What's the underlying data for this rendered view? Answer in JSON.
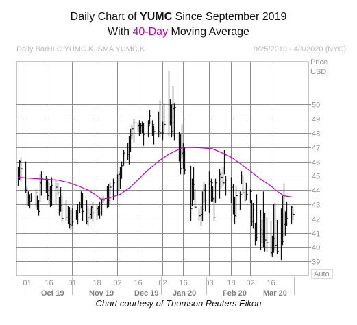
{
  "header": {
    "line1_prefix": "Daily Chart of ",
    "line1_ticker": "YUMC",
    "line1_suffix": " Since September 2019",
    "line2_prefix": "With ",
    "line2_accent": "40-Day",
    "line2_suffix": " Moving Average",
    "series_label": "Daily BarHLC YUMC.K, SMA YUMC.K",
    "date_range": "9/25/2019 - 4/1/2020 (NYC)"
  },
  "footer": "Chart courtesy of Thomson Reuters Eikon",
  "colors": {
    "bars": "#111111",
    "sma": "#c000c0",
    "grid": "#8c8c8c",
    "accent": "#c000c0"
  },
  "chart_data": {
    "type": "bar",
    "subtype": "ohlc-hlc",
    "title": "Daily Chart of YUMC Since September 2019 With 40-Day Moving Average",
    "ylabel": "Price USD",
    "ylim": [
      38,
      53
    ],
    "yticks": [
      39,
      40,
      41,
      42,
      43,
      44,
      45,
      46,
      47,
      48,
      49,
      50
    ],
    "auto_label": "Auto",
    "xticks": [
      "01",
      "16",
      "01",
      "18",
      "02",
      "16",
      "02",
      "16",
      "03",
      "18",
      "02",
      "16"
    ],
    "months": [
      "Oct 19",
      "Nov 19",
      "Dec 19",
      "Jan 20",
      "Feb 20",
      "Mar 20"
    ],
    "grid": true,
    "series": [
      {
        "name": "YUMC.K",
        "kind": "hlc",
        "x": [
          "2019-09-25",
          "2019-09-26",
          "2019-09-27",
          "2019-09-30",
          "2019-10-01",
          "2019-10-02",
          "2019-10-03",
          "2019-10-04",
          "2019-10-07",
          "2019-10-08",
          "2019-10-09",
          "2019-10-10",
          "2019-10-11",
          "2019-10-14",
          "2019-10-15",
          "2019-10-16",
          "2019-10-17",
          "2019-10-18",
          "2019-10-21",
          "2019-10-22",
          "2019-10-23",
          "2019-10-24",
          "2019-10-25",
          "2019-10-28",
          "2019-10-29",
          "2019-10-30",
          "2019-10-31",
          "2019-11-01",
          "2019-11-04",
          "2019-11-05",
          "2019-11-06",
          "2019-11-07",
          "2019-11-08",
          "2019-11-11",
          "2019-11-12",
          "2019-11-13",
          "2019-11-14",
          "2019-11-15",
          "2019-11-18",
          "2019-11-19",
          "2019-11-20",
          "2019-11-21",
          "2019-11-22",
          "2019-11-25",
          "2019-11-26",
          "2019-11-27",
          "2019-11-29",
          "2019-12-02",
          "2019-12-03",
          "2019-12-04",
          "2019-12-05",
          "2019-12-06",
          "2019-12-09",
          "2019-12-10",
          "2019-12-11",
          "2019-12-12",
          "2019-12-13",
          "2019-12-16",
          "2019-12-17",
          "2019-12-18",
          "2019-12-19",
          "2019-12-20",
          "2019-12-23",
          "2019-12-24",
          "2019-12-26",
          "2019-12-27",
          "2019-12-30",
          "2019-12-31",
          "2020-01-02",
          "2020-01-03",
          "2020-01-06",
          "2020-01-07",
          "2020-01-08",
          "2020-01-09",
          "2020-01-10",
          "2020-01-13",
          "2020-01-14",
          "2020-01-15",
          "2020-01-16",
          "2020-01-17",
          "2020-01-21",
          "2020-01-22",
          "2020-01-23",
          "2020-01-24",
          "2020-01-27",
          "2020-01-28",
          "2020-01-29",
          "2020-01-30",
          "2020-01-31",
          "2020-02-03",
          "2020-02-04",
          "2020-02-05",
          "2020-02-06",
          "2020-02-07",
          "2020-02-10",
          "2020-02-11",
          "2020-02-12",
          "2020-02-13",
          "2020-02-14",
          "2020-02-18",
          "2020-02-19",
          "2020-02-20",
          "2020-02-21",
          "2020-02-24",
          "2020-02-25",
          "2020-02-26",
          "2020-02-27",
          "2020-02-28",
          "2020-03-02",
          "2020-03-03",
          "2020-03-04",
          "2020-03-05",
          "2020-03-06",
          "2020-03-09",
          "2020-03-10",
          "2020-03-11",
          "2020-03-12",
          "2020-03-13",
          "2020-03-16",
          "2020-03-17",
          "2020-03-18",
          "2020-03-19",
          "2020-03-20",
          "2020-03-23",
          "2020-03-24",
          "2020-03-25",
          "2020-03-26",
          "2020-03-27",
          "2020-03-30",
          "2020-03-31"
        ],
        "high": [
          45.6,
          46.1,
          46.3,
          46.0,
          44.3,
          43.9,
          43.7,
          43.8,
          44.1,
          43.6,
          43.3,
          45.1,
          45.3,
          45.0,
          44.8,
          44.6,
          44.3,
          44.9,
          44.7,
          44.5,
          43.5,
          44.2,
          43.6,
          43.3,
          42.9,
          42.8,
          42.6,
          42.7,
          42.6,
          43.0,
          43.2,
          43.9,
          43.8,
          43.3,
          42.9,
          42.7,
          42.9,
          43.2,
          43.0,
          42.9,
          43.2,
          43.4,
          43.6,
          44.3,
          44.4,
          44.6,
          44.8,
          45.1,
          45.3,
          45.6,
          46.0,
          46.8,
          47.3,
          47.8,
          48.3,
          48.6,
          49.0,
          48.7,
          48.9,
          48.7,
          48.8,
          48.7,
          48.9,
          49.6,
          48.9,
          48.5,
          49.5,
          50.2,
          48.8,
          50.1,
          52.4,
          50.4,
          50.0,
          51.3,
          50.1,
          48.1,
          47.9,
          48.6,
          47.3,
          47.0,
          45.7,
          44.8,
          45.6,
          44.1,
          42.7,
          42.9,
          43.9,
          44.6,
          44.4,
          45.3,
          44.8,
          44.3,
          43.5,
          44.8,
          45.5,
          45.3,
          45.6,
          46.8,
          45.0,
          44.9,
          44.4,
          43.5,
          44.3,
          43.9,
          45.3,
          45.0,
          43.9,
          44.5,
          44.1,
          43.3,
          43.1,
          41.7,
          43.7,
          42.6,
          41.9,
          43.9,
          42.4,
          42.1,
          41.8,
          40.8,
          43.0,
          43.1,
          41.9,
          42.7,
          43.6,
          44.4,
          42.5,
          43.2,
          42.9,
          42.7
        ],
        "low": [
          44.3,
          44.7,
          44.6,
          43.8,
          42.9,
          42.9,
          42.7,
          43.2,
          42.8,
          42.6,
          42.2,
          43.2,
          43.6,
          43.8,
          43.3,
          43.0,
          42.8,
          42.9,
          43.0,
          43.6,
          42.2,
          42.5,
          41.8,
          41.8,
          41.6,
          41.3,
          41.2,
          41.5,
          41.9,
          41.6,
          42.4,
          42.7,
          41.8,
          41.6,
          41.5,
          41.9,
          42.0,
          41.8,
          41.9,
          42.2,
          42.0,
          42.2,
          43.1,
          42.7,
          42.8,
          43.0,
          43.3,
          43.6,
          43.9,
          44.1,
          44.8,
          45.7,
          46.1,
          45.8,
          46.7,
          47.6,
          47.3,
          48.1,
          47.8,
          47.9,
          48.0,
          47.1,
          47.7,
          48.6,
          47.8,
          47.2,
          47.7,
          47.7,
          47.5,
          48.1,
          47.8,
          48.5,
          47.7,
          47.8,
          47.5,
          46.0,
          45.1,
          46.2,
          45.5,
          45.1,
          41.8,
          42.9,
          43.3,
          42.7,
          41.8,
          41.5,
          41.8,
          43.1,
          42.5,
          42.4,
          43.2,
          43.2,
          41.8,
          43.1,
          43.4,
          44.1,
          44.3,
          45.1,
          43.6,
          43.1,
          42.3,
          41.6,
          42.1,
          42.6,
          44.4,
          43.6,
          43.2,
          43.3,
          43.1,
          41.5,
          41.3,
          40.1,
          40.4,
          39.8,
          40.3,
          40.0,
          39.7,
          39.7,
          39.4,
          39.3,
          39.6,
          39.8,
          39.5,
          39.1,
          40.1,
          40.7,
          40.8,
          41.5,
          41.6,
          41.9
        ],
        "close": [
          45.0,
          46.0,
          45.5,
          44.0,
          43.5,
          43.3,
          43.2,
          43.5,
          43.8,
          42.8,
          42.5,
          44.5,
          44.8,
          44.2,
          43.6,
          43.3,
          43.4,
          44.3,
          44.2,
          43.8,
          42.5,
          42.9,
          42.0,
          42.1,
          42.2,
          41.6,
          41.5,
          41.8,
          42.3,
          42.4,
          43.0,
          43.1,
          42.5,
          41.8,
          42.1,
          42.3,
          42.8,
          42.4,
          42.7,
          42.5,
          42.4,
          43.0,
          43.3,
          43.1,
          43.3,
          44.2,
          44.5,
          45.0,
          45.1,
          45.5,
          45.7,
          46.6,
          46.5,
          47.4,
          47.8,
          48.3,
          48.7,
          48.5,
          48.3,
          48.5,
          48.4,
          47.9,
          48.5,
          49.2,
          48.6,
          48.1,
          48.1,
          48.0,
          48.0,
          48.6,
          48.7,
          48.8,
          48.1,
          49.7,
          49.8,
          46.4,
          45.5,
          46.6,
          45.9,
          45.4,
          42.7,
          44.4,
          44.4,
          42.8,
          42.2,
          42.3,
          42.6,
          44.0,
          43.3,
          44.6,
          44.5,
          43.4,
          42.1,
          44.5,
          45.1,
          44.9,
          44.5,
          46.4,
          44.7,
          44.2,
          42.5,
          42.2,
          43.6,
          43.7,
          45.0,
          43.8,
          43.3,
          43.7,
          43.9,
          41.8,
          42.6,
          40.9,
          40.7,
          41.2,
          40.9,
          40.7,
          40.5,
          40.3,
          39.6,
          40.2,
          40.6,
          40.1,
          39.7,
          40.2,
          40.4,
          41.6,
          41.8,
          42.0,
          42.8,
          42.3
        ]
      },
      {
        "name": "SMA 40",
        "x": [
          "2019-09-25",
          "2019-10-01",
          "2019-10-08",
          "2019-10-16",
          "2019-10-22",
          "2019-10-29",
          "2019-11-05",
          "2019-11-12",
          "2019-11-18",
          "2019-11-21",
          "2019-11-27",
          "2019-12-04",
          "2019-12-11",
          "2019-12-17",
          "2019-12-23",
          "2019-12-30",
          "2020-01-06",
          "2020-01-13",
          "2020-01-17",
          "2020-01-22",
          "2020-01-29",
          "2020-02-05",
          "2020-02-12",
          "2020-02-18",
          "2020-02-25",
          "2020-03-03",
          "2020-03-10",
          "2020-03-16",
          "2020-03-20",
          "2020-03-25",
          "2020-03-31"
        ],
        "values": [
          44.9,
          44.85,
          44.8,
          44.75,
          44.7,
          44.55,
          44.3,
          44.0,
          43.6,
          43.35,
          43.45,
          43.7,
          44.2,
          44.8,
          45.4,
          46.0,
          46.5,
          46.85,
          47.0,
          47.0,
          46.95,
          46.9,
          46.6,
          46.3,
          45.8,
          45.25,
          44.7,
          44.3,
          43.95,
          43.6,
          43.5
        ]
      }
    ]
  }
}
